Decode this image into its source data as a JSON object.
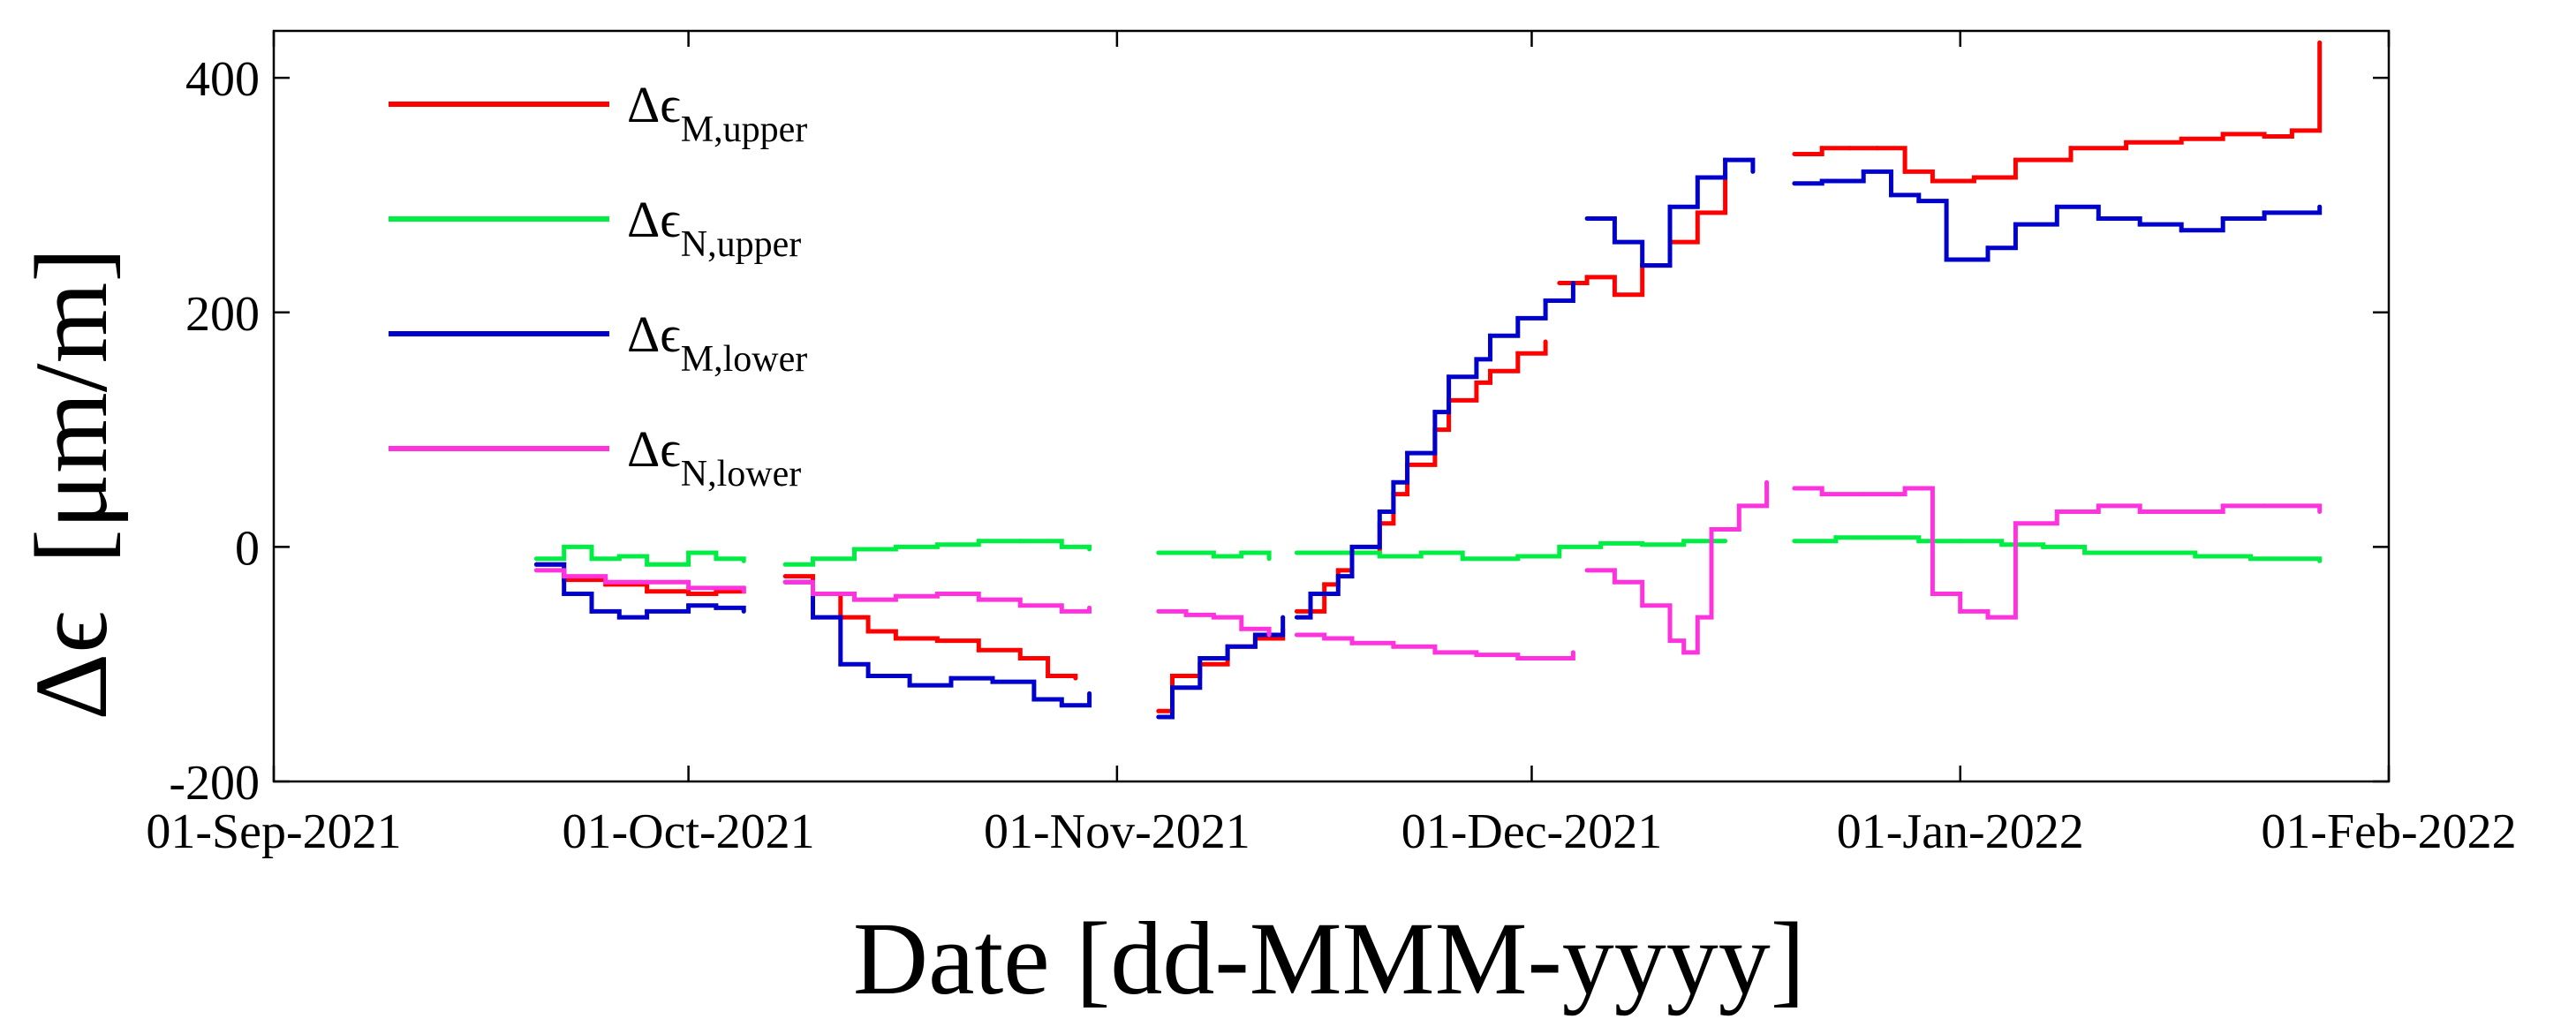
{
  "chart_data": {
    "type": "line",
    "title": "",
    "xlabel": "Date [dd-MMM-yyyy]",
    "ylabel_symbol": "Δϵ",
    "ylabel_unit": "[μm/m]",
    "xlim": [
      "2021-09-01",
      "2022-02-01"
    ],
    "ylim": [
      -200,
      440
    ],
    "x_ticks": [
      {
        "date": "2021-09-01",
        "label": "01-Sep-2021"
      },
      {
        "date": "2021-10-01",
        "label": "01-Oct-2021"
      },
      {
        "date": "2021-11-01",
        "label": "01-Nov-2021"
      },
      {
        "date": "2021-12-01",
        "label": "01-Dec-2021"
      },
      {
        "date": "2022-01-01",
        "label": "01-Jan-2022"
      },
      {
        "date": "2022-02-01",
        "label": "01-Feb-2022"
      }
    ],
    "y_ticks": [
      {
        "value": -200,
        "label": "-200"
      },
      {
        "value": 0,
        "label": "0"
      },
      {
        "value": 200,
        "label": "200"
      },
      {
        "value": 400,
        "label": "400"
      }
    ],
    "grid": false,
    "legend_position": "top-left",
    "series": [
      {
        "name": "Δϵ",
        "subscript": "M,upper",
        "color": "#ff0000",
        "segments": [
          [
            [
              "2021-09-20",
              -15
            ],
            [
              "2021-09-22",
              -28
            ],
            [
              "2021-09-25",
              -32
            ],
            [
              "2021-09-28",
              -38
            ],
            [
              "2021-10-01",
              -40
            ],
            [
              "2021-10-03",
              -38
            ],
            [
              "2021-10-05",
              -35
            ]
          ],
          [
            [
              "2021-10-08",
              -25
            ],
            [
              "2021-10-10",
              -40
            ],
            [
              "2021-10-12",
              -60
            ],
            [
              "2021-10-14",
              -72
            ],
            [
              "2021-10-16",
              -78
            ],
            [
              "2021-10-19",
              -80
            ],
            [
              "2021-10-22",
              -88
            ],
            [
              "2021-10-25",
              -95
            ],
            [
              "2021-10-27",
              -110
            ],
            [
              "2021-10-29",
              -112
            ]
          ],
          [
            [
              "2021-11-04",
              -140
            ],
            [
              "2021-11-05",
              -110
            ],
            [
              "2021-11-07",
              -100
            ],
            [
              "2021-11-09",
              -85
            ],
            [
              "2021-11-11",
              -78
            ],
            [
              "2021-11-13",
              -70
            ]
          ],
          [
            [
              "2021-11-14",
              -55
            ],
            [
              "2021-11-16",
              -32
            ],
            [
              "2021-11-17",
              -20
            ],
            [
              "2021-11-18",
              -5
            ],
            [
              "2021-11-20",
              20
            ],
            [
              "2021-11-21",
              45
            ],
            [
              "2021-11-22",
              70
            ],
            [
              "2021-11-24",
              100
            ],
            [
              "2021-11-25",
              125
            ],
            [
              "2021-11-27",
              140
            ],
            [
              "2021-11-28",
              150
            ],
            [
              "2021-11-30",
              165
            ],
            [
              "2021-12-02",
              175
            ]
          ],
          [
            [
              "2021-12-03",
              225
            ],
            [
              "2021-12-05",
              230
            ],
            [
              "2021-12-07",
              215
            ],
            [
              "2021-12-09",
              240
            ],
            [
              "2021-12-11",
              260
            ],
            [
              "2021-12-13",
              285
            ],
            [
              "2021-12-15",
              320
            ]
          ],
          [
            [
              "2021-12-20",
              335
            ],
            [
              "2021-12-22",
              340
            ],
            [
              "2021-12-24",
              340
            ],
            [
              "2021-12-26",
              340
            ],
            [
              "2021-12-28",
              320
            ],
            [
              "2021-12-30",
              312
            ],
            [
              "2022-01-02",
              315
            ],
            [
              "2022-01-05",
              330
            ],
            [
              "2022-01-09",
              340
            ],
            [
              "2022-01-13",
              345
            ],
            [
              "2022-01-17",
              348
            ],
            [
              "2022-01-20",
              352
            ],
            [
              "2022-01-23",
              350
            ],
            [
              "2022-01-25",
              355
            ],
            [
              "2022-01-27",
              430
            ]
          ]
        ]
      },
      {
        "name": "Δϵ",
        "subscript": "N,upper",
        "color": "#00ee44",
        "segments": [
          [
            [
              "2021-09-20",
              -10
            ],
            [
              "2021-09-22",
              0
            ],
            [
              "2021-09-24",
              -10
            ],
            [
              "2021-09-26",
              -8
            ],
            [
              "2021-09-28",
              -15
            ],
            [
              "2021-10-01",
              -5
            ],
            [
              "2021-10-03",
              -10
            ],
            [
              "2021-10-05",
              -12
            ]
          ],
          [
            [
              "2021-10-08",
              -15
            ],
            [
              "2021-10-10",
              -10
            ],
            [
              "2021-10-13",
              -2
            ],
            [
              "2021-10-16",
              0
            ],
            [
              "2021-10-19",
              2
            ],
            [
              "2021-10-22",
              5
            ],
            [
              "2021-10-25",
              5
            ],
            [
              "2021-10-28",
              0
            ],
            [
              "2021-10-30",
              -2
            ]
          ],
          [
            [
              "2021-11-04",
              -5
            ],
            [
              "2021-11-06",
              -5
            ],
            [
              "2021-11-08",
              -8
            ],
            [
              "2021-11-10",
              -5
            ],
            [
              "2021-11-12",
              -10
            ]
          ],
          [
            [
              "2021-11-14",
              -5
            ],
            [
              "2021-11-17",
              -5
            ],
            [
              "2021-11-20",
              -8
            ],
            [
              "2021-11-23",
              -5
            ],
            [
              "2021-11-26",
              -10
            ],
            [
              "2021-11-30",
              -8
            ],
            [
              "2021-12-03",
              0
            ],
            [
              "2021-12-06",
              3
            ],
            [
              "2021-12-09",
              2
            ],
            [
              "2021-12-12",
              5
            ],
            [
              "2021-12-15",
              5
            ]
          ],
          [
            [
              "2021-12-20",
              5
            ],
            [
              "2021-12-23",
              8
            ],
            [
              "2021-12-26",
              8
            ],
            [
              "2021-12-29",
              5
            ],
            [
              "2022-01-01",
              5
            ],
            [
              "2022-01-04",
              2
            ],
            [
              "2022-01-07",
              0
            ],
            [
              "2022-01-10",
              -5
            ],
            [
              "2022-01-14",
              -5
            ],
            [
              "2022-01-18",
              -8
            ],
            [
              "2022-01-22",
              -10
            ],
            [
              "2022-01-27",
              -12
            ]
          ]
        ]
      },
      {
        "name": "Δϵ",
        "subscript": "M,lower",
        "color": "#0000cc",
        "segments": [
          [
            [
              "2021-09-20",
              -15
            ],
            [
              "2021-09-22",
              -40
            ],
            [
              "2021-09-24",
              -55
            ],
            [
              "2021-09-26",
              -60
            ],
            [
              "2021-09-28",
              -55
            ],
            [
              "2021-10-01",
              -50
            ],
            [
              "2021-10-03",
              -52
            ],
            [
              "2021-10-05",
              -55
            ]
          ],
          [
            [
              "2021-10-08",
              -30
            ],
            [
              "2021-10-10",
              -60
            ],
            [
              "2021-10-12",
              -100
            ],
            [
              "2021-10-14",
              -110
            ],
            [
              "2021-10-17",
              -118
            ],
            [
              "2021-10-20",
              -112
            ],
            [
              "2021-10-23",
              -115
            ],
            [
              "2021-10-26",
              -130
            ],
            [
              "2021-10-28",
              -135
            ],
            [
              "2021-10-30",
              -125
            ]
          ],
          [
            [
              "2021-11-04",
              -145
            ],
            [
              "2021-11-05",
              -120
            ],
            [
              "2021-11-07",
              -95
            ],
            [
              "2021-11-09",
              -85
            ],
            [
              "2021-11-11",
              -75
            ],
            [
              "2021-11-13",
              -60
            ]
          ],
          [
            [
              "2021-11-14",
              -60
            ],
            [
              "2021-11-15",
              -40
            ],
            [
              "2021-11-17",
              -25
            ],
            [
              "2021-11-18",
              0
            ],
            [
              "2021-11-20",
              30
            ],
            [
              "2021-11-21",
              55
            ],
            [
              "2021-11-22",
              80
            ],
            [
              "2021-11-24",
              115
            ],
            [
              "2021-11-25",
              145
            ],
            [
              "2021-11-27",
              160
            ],
            [
              "2021-11-28",
              180
            ],
            [
              "2021-11-30",
              195
            ],
            [
              "2021-12-02",
              210
            ],
            [
              "2021-12-04",
              225
            ]
          ],
          [
            [
              "2021-12-05",
              280
            ],
            [
              "2021-12-07",
              260
            ],
            [
              "2021-12-09",
              240
            ],
            [
              "2021-12-11",
              290
            ],
            [
              "2021-12-13",
              315
            ],
            [
              "2021-12-15",
              330
            ],
            [
              "2021-12-17",
              320
            ]
          ],
          [
            [
              "2021-12-20",
              310
            ],
            [
              "2021-12-22",
              312
            ],
            [
              "2021-12-25",
              320
            ],
            [
              "2021-12-27",
              300
            ],
            [
              "2021-12-29",
              295
            ],
            [
              "2021-12-31",
              245
            ],
            [
              "2022-01-03",
              255
            ],
            [
              "2022-01-05",
              275
            ],
            [
              "2022-01-08",
              290
            ],
            [
              "2022-01-11",
              280
            ],
            [
              "2022-01-14",
              275
            ],
            [
              "2022-01-17",
              270
            ],
            [
              "2022-01-20",
              280
            ],
            [
              "2022-01-23",
              285
            ],
            [
              "2022-01-27",
              290
            ]
          ]
        ]
      },
      {
        "name": "Δϵ",
        "subscript": "N,lower",
        "color": "#ff33dd",
        "segments": [
          [
            [
              "2021-09-20",
              -20
            ],
            [
              "2021-09-22",
              -25
            ],
            [
              "2021-09-25",
              -30
            ],
            [
              "2021-09-28",
              -30
            ],
            [
              "2021-10-01",
              -35
            ],
            [
              "2021-10-03",
              -35
            ],
            [
              "2021-10-05",
              -38
            ]
          ],
          [
            [
              "2021-10-08",
              -30
            ],
            [
              "2021-10-10",
              -40
            ],
            [
              "2021-10-13",
              -45
            ],
            [
              "2021-10-16",
              -42
            ],
            [
              "2021-10-19",
              -40
            ],
            [
              "2021-10-22",
              -45
            ],
            [
              "2021-10-25",
              -50
            ],
            [
              "2021-10-28",
              -55
            ],
            [
              "2021-10-30",
              -52
            ]
          ],
          [
            [
              "2021-11-04",
              -55
            ],
            [
              "2021-11-06",
              -58
            ],
            [
              "2021-11-08",
              -60
            ],
            [
              "2021-11-10",
              -70
            ],
            [
              "2021-11-12",
              -75
            ]
          ],
          [
            [
              "2021-11-14",
              -75
            ],
            [
              "2021-11-16",
              -78
            ],
            [
              "2021-11-18",
              -82
            ],
            [
              "2021-11-21",
              -85
            ],
            [
              "2021-11-24",
              -90
            ],
            [
              "2021-11-27",
              -92
            ],
            [
              "2021-11-30",
              -95
            ],
            [
              "2021-12-03",
              -95
            ],
            [
              "2021-12-04",
              -90
            ]
          ],
          [
            [
              "2021-12-05",
              -20
            ],
            [
              "2021-12-07",
              -30
            ],
            [
              "2021-12-09",
              -50
            ],
            [
              "2021-12-11",
              -80
            ],
            [
              "2021-12-12",
              -90
            ],
            [
              "2021-12-13",
              -60
            ],
            [
              "2021-12-14",
              15
            ],
            [
              "2021-12-16",
              35
            ],
            [
              "2021-12-18",
              55
            ]
          ],
          [
            [
              "2021-12-20",
              50
            ],
            [
              "2021-12-22",
              45
            ],
            [
              "2021-12-25",
              45
            ],
            [
              "2021-12-28",
              50
            ],
            [
              "2021-12-30",
              -40
            ],
            [
              "2022-01-01",
              -55
            ],
            [
              "2022-01-03",
              -60
            ],
            [
              "2022-01-05",
              20
            ],
            [
              "2022-01-08",
              30
            ],
            [
              "2022-01-11",
              35
            ],
            [
              "2022-01-14",
              30
            ],
            [
              "2022-01-17",
              30
            ],
            [
              "2022-01-20",
              35
            ],
            [
              "2022-01-23",
              35
            ],
            [
              "2022-01-27",
              30
            ]
          ]
        ]
      }
    ]
  }
}
